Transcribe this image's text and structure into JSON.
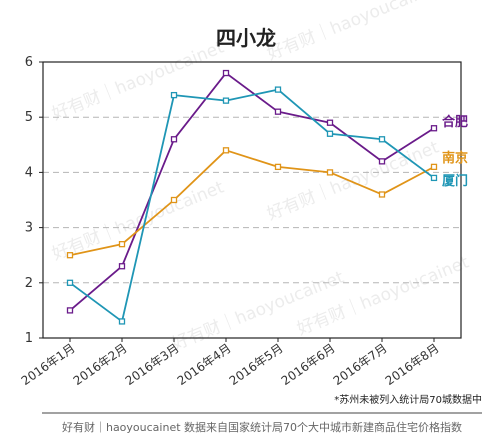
{
  "chart_data": {
    "type": "line",
    "title": "四小龙",
    "categories": [
      "2016年1月",
      "2016年2月",
      "2016年3月",
      "2016年4月",
      "2016年5月",
      "2016年6月",
      "2016年7月",
      "2016年8月"
    ],
    "ylim": [
      1,
      6
    ],
    "yticks": [
      1,
      2,
      3,
      4,
      5,
      6
    ],
    "grid": "horizontal dashed",
    "series": [
      {
        "name": "合肥",
        "color": "#6a1b8a",
        "values": [
          1.5,
          2.3,
          4.6,
          5.8,
          5.1,
          4.9,
          4.2,
          4.8
        ]
      },
      {
        "name": "南京",
        "color": "#e09418",
        "values": [
          2.5,
          2.7,
          3.5,
          4.4,
          4.1,
          4.0,
          3.6,
          4.1
        ]
      },
      {
        "name": "厦门",
        "color": "#1f96b5",
        "values": [
          2.0,
          1.3,
          5.4,
          5.3,
          5.5,
          4.7,
          4.6,
          3.9
        ]
      }
    ]
  },
  "footnote": "*苏州未被列入统计局70城数据中",
  "credit": "好有财｜haoyoucainet   数据来自国家统计局70个大中城市新建商品住宅价格指数",
  "watermark": "好有财｜haoyoucainet"
}
